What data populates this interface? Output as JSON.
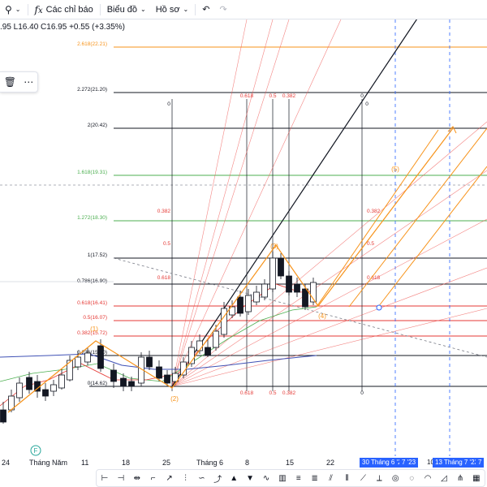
{
  "toolbar": {
    "items": [
      {
        "name": "interval-button",
        "icon": "interval-icon",
        "label": "",
        "chevron": true
      },
      {
        "name": "indicators-button",
        "icon": "fx-icon",
        "label": "Các chỉ báo",
        "chevron": false
      },
      {
        "name": "chart-type-button",
        "icon": "",
        "label": "Biểu đồ",
        "chevron": true
      },
      {
        "name": "profile-button",
        "icon": "",
        "label": "Hồ sơ",
        "chevron": true
      }
    ]
  },
  "ohlc_text": ".95  L16.40  C16.95  +0.55 (+3.35%)",
  "fib_levels": [
    {
      "label": "2.618(22.21)",
      "color": "#f7931a"
    },
    {
      "label": "2.272(21.20)",
      "color": "#131722"
    },
    {
      "label": "2(20.42)",
      "color": "#131722"
    },
    {
      "label": "1.618(19.31)",
      "color": "#4caf50"
    },
    {
      "label": "1.272(18.30)",
      "color": "#4caf50"
    },
    {
      "label": "1(17.52)",
      "color": "#131722"
    },
    {
      "label": "0.786(16.90)",
      "color": "#131722"
    },
    {
      "label": "0.618(16.41)",
      "color": "#e53935"
    },
    {
      "label": "0.5(16.07)",
      "color": "#e53935"
    },
    {
      "label": "0.382(15.72)",
      "color": "#e53935"
    },
    {
      "label": "0.236(15.30)",
      "color": "#131722"
    },
    {
      "label": "0(14.62)",
      "color": "#131722"
    }
  ],
  "fan_labels": {
    "top": [
      "0.618",
      "0.5",
      "0.382",
      "0"
    ],
    "bottom": [
      "0.618",
      "0.5",
      "0.382",
      "0"
    ],
    "zero_top": "0",
    "left_mid": [
      "0.382",
      "0.5",
      "0.618"
    ],
    "right_mid": [
      "0.382",
      "0.5",
      "0.618"
    ]
  },
  "waves": [
    "(1)",
    "(2)",
    "(3)",
    "(4)",
    "(5)"
  ],
  "xaxis": {
    "labels": [
      "24",
      "Tháng Năm",
      "11",
      "18",
      "25",
      "Tháng 6",
      "8",
      "15",
      "22"
    ],
    "badges": [
      "30 Tháng 6 '23",
      "7 '23",
      "10",
      "13 Tháng 7 '23",
      "7"
    ]
  },
  "earnings_badge": "F",
  "bottom_tools": [
    "range-icon",
    "date-range-icon",
    "price-range-icon",
    "measure-icon",
    "forecast-icon",
    "bars-pattern-icon",
    "ghost-feed-icon",
    "projection-icon",
    "long-position-icon",
    "short-position-icon",
    "anchored-vwap-icon",
    "volume-profile-icon",
    "fib-retracement-icon",
    "fib-extension-icon",
    "fib-channel-icon",
    "fib-timezone-icon",
    "fib-fan-icon",
    "fib-time-icon",
    "fib-circles-icon",
    "fib-spiral-icon",
    "fib-arcs-icon",
    "fib-wedge-icon",
    "pitchfan-icon",
    "gann-box-icon"
  ]
}
